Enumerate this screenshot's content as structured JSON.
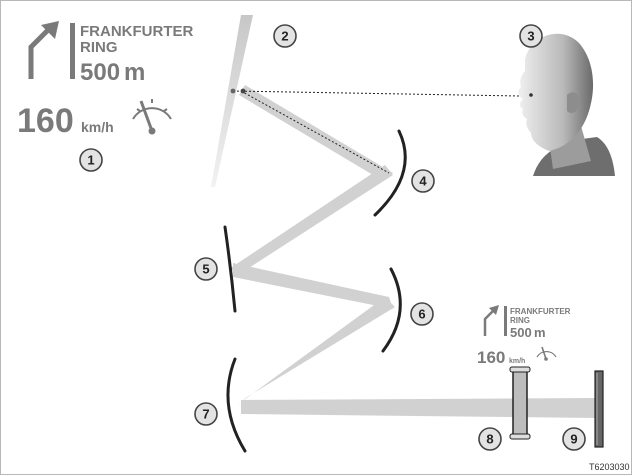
{
  "hud_large": {
    "road_line1": "FRANKFURTER",
    "road_line2": "RING",
    "distance_value": "500",
    "distance_unit": "m",
    "speed_value": "160",
    "speed_unit": "km/h"
  },
  "hud_small": {
    "road_line1": "FRANKFURTER",
    "road_line2": "RING",
    "distance_value": "500",
    "distance_unit": "m",
    "speed_value": "160",
    "speed_unit": "km/h"
  },
  "callouts": [
    "1",
    "2",
    "3",
    "4",
    "5",
    "6",
    "7",
    "8",
    "9"
  ],
  "figure_code": "T6203030",
  "icons": {
    "arrow": "turn-right-arrow-icon",
    "gauge": "speedometer-gauge-icon",
    "driver": "driver-head-icon"
  },
  "colors": {
    "hud_gray": "#7a7a7a",
    "beam": "#cfcfcf",
    "callout_fill": "#e3e3e3"
  }
}
